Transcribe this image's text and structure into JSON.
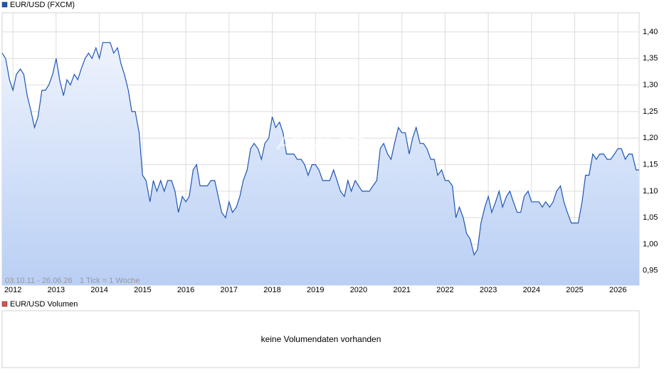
{
  "chart_data": {
    "type": "line",
    "title": "EUR/USD (FXCM)",
    "subtitle": "03.10.11 - 26.06.26",
    "note": "1 Tick = 1 Woche",
    "watermark": "ARIVA.DE",
    "volume_title": "EUR/USD Volumen",
    "volume_message": "keine Volumendaten vorhanden",
    "x": [
      2011.75,
      2011.83,
      2011.92,
      2012.0,
      2012.08,
      2012.17,
      2012.25,
      2012.33,
      2012.42,
      2012.5,
      2012.58,
      2012.67,
      2012.75,
      2012.83,
      2012.92,
      2013.0,
      2013.08,
      2013.17,
      2013.25,
      2013.33,
      2013.42,
      2013.5,
      2013.58,
      2013.67,
      2013.75,
      2013.83,
      2013.92,
      2014.0,
      2014.08,
      2014.17,
      2014.25,
      2014.33,
      2014.42,
      2014.5,
      2014.58,
      2014.67,
      2014.75,
      2014.83,
      2014.92,
      2015.0,
      2015.08,
      2015.17,
      2015.25,
      2015.33,
      2015.42,
      2015.5,
      2015.58,
      2015.67,
      2015.75,
      2015.83,
      2015.92,
      2016.0,
      2016.08,
      2016.17,
      2016.25,
      2016.33,
      2016.42,
      2016.5,
      2016.58,
      2016.67,
      2016.75,
      2016.83,
      2016.92,
      2017.0,
      2017.08,
      2017.17,
      2017.25,
      2017.33,
      2017.42,
      2017.5,
      2017.58,
      2017.67,
      2017.75,
      2017.83,
      2017.92,
      2018.0,
      2018.08,
      2018.17,
      2018.25,
      2018.33,
      2018.42,
      2018.5,
      2018.58,
      2018.67,
      2018.75,
      2018.83,
      2018.92,
      2019.0,
      2019.08,
      2019.17,
      2019.25,
      2019.33,
      2019.42,
      2019.5,
      2019.58,
      2019.67,
      2019.75,
      2019.83,
      2019.92,
      2020.0,
      2020.08,
      2020.17,
      2020.25,
      2020.33,
      2020.42,
      2020.5,
      2020.58,
      2020.67,
      2020.75,
      2020.83,
      2020.92,
      2021.0,
      2021.08,
      2021.17,
      2021.25,
      2021.33,
      2021.42,
      2021.5,
      2021.58,
      2021.67,
      2021.75,
      2021.83,
      2021.92,
      2022.0,
      2022.08,
      2022.17,
      2022.25,
      2022.33,
      2022.42,
      2022.5,
      2022.58,
      2022.67,
      2022.75,
      2022.83,
      2022.92,
      2023.0,
      2023.08,
      2023.17,
      2023.25,
      2023.33,
      2023.42,
      2023.5,
      2023.58,
      2023.67,
      2023.75,
      2023.83,
      2023.92,
      2024.0,
      2024.08,
      2024.17,
      2024.25,
      2024.33,
      2024.42,
      2024.5,
      2024.58,
      2024.67,
      2024.75,
      2024.83,
      2024.92,
      2025.0,
      2025.08,
      2025.17,
      2025.25,
      2025.33,
      2025.42,
      2025.5,
      2025.58,
      2025.67,
      2025.75,
      2025.83,
      2025.92,
      2026.0,
      2026.08,
      2026.17,
      2026.25,
      2026.33,
      2026.42,
      2026.49
    ],
    "series": [
      {
        "name": "EUR/USD (FXCM)",
        "color": "#1f56b4",
        "values": [
          1.36,
          1.35,
          1.31,
          1.29,
          1.32,
          1.33,
          1.32,
          1.28,
          1.25,
          1.22,
          1.24,
          1.29,
          1.29,
          1.3,
          1.32,
          1.35,
          1.31,
          1.28,
          1.31,
          1.3,
          1.32,
          1.31,
          1.33,
          1.35,
          1.36,
          1.35,
          1.37,
          1.35,
          1.38,
          1.38,
          1.38,
          1.36,
          1.37,
          1.34,
          1.32,
          1.29,
          1.25,
          1.25,
          1.21,
          1.13,
          1.12,
          1.08,
          1.12,
          1.1,
          1.12,
          1.1,
          1.12,
          1.12,
          1.1,
          1.06,
          1.09,
          1.08,
          1.09,
          1.14,
          1.15,
          1.11,
          1.11,
          1.11,
          1.12,
          1.12,
          1.09,
          1.06,
          1.05,
          1.08,
          1.06,
          1.07,
          1.09,
          1.12,
          1.14,
          1.18,
          1.19,
          1.18,
          1.16,
          1.19,
          1.2,
          1.24,
          1.22,
          1.23,
          1.21,
          1.17,
          1.17,
          1.17,
          1.16,
          1.16,
          1.15,
          1.13,
          1.15,
          1.15,
          1.14,
          1.12,
          1.12,
          1.12,
          1.14,
          1.12,
          1.1,
          1.09,
          1.12,
          1.1,
          1.12,
          1.11,
          1.1,
          1.1,
          1.1,
          1.11,
          1.12,
          1.18,
          1.19,
          1.17,
          1.16,
          1.19,
          1.22,
          1.21,
          1.21,
          1.17,
          1.2,
          1.22,
          1.19,
          1.19,
          1.18,
          1.16,
          1.16,
          1.13,
          1.14,
          1.12,
          1.12,
          1.11,
          1.05,
          1.07,
          1.05,
          1.02,
          1.01,
          0.98,
          0.99,
          1.04,
          1.07,
          1.09,
          1.06,
          1.08,
          1.1,
          1.07,
          1.09,
          1.1,
          1.08,
          1.06,
          1.06,
          1.09,
          1.1,
          1.08,
          1.08,
          1.08,
          1.07,
          1.08,
          1.07,
          1.08,
          1.1,
          1.11,
          1.08,
          1.06,
          1.04,
          1.04,
          1.04,
          1.08,
          1.13,
          1.13,
          1.17,
          1.16,
          1.17,
          1.17,
          1.16,
          1.16,
          1.17,
          1.18,
          1.18,
          1.16,
          1.17,
          1.17,
          1.14,
          1.14
        ]
      }
    ],
    "xlim": [
      2011.75,
      2026.49
    ],
    "xticks": [
      2012,
      2013,
      2014,
      2015,
      2016,
      2017,
      2018,
      2019,
      2020,
      2021,
      2022,
      2023,
      2024,
      2025,
      2026
    ],
    "ylim": [
      0.923,
      1.436
    ],
    "yticks": [
      {
        "value": 0.95,
        "label": "0,95"
      },
      {
        "value": 1.0,
        "label": "1,00"
      },
      {
        "value": 1.05,
        "label": "1,05"
      },
      {
        "value": 1.1,
        "label": "1,10"
      },
      {
        "value": 1.15,
        "label": "1,15"
      },
      {
        "value": 1.2,
        "label": "1,20"
      },
      {
        "value": 1.25,
        "label": "1,25"
      },
      {
        "value": 1.3,
        "label": "1,30"
      },
      {
        "value": 1.35,
        "label": "1,35"
      },
      {
        "value": 1.4,
        "label": "1,40"
      }
    ],
    "grid": true
  }
}
